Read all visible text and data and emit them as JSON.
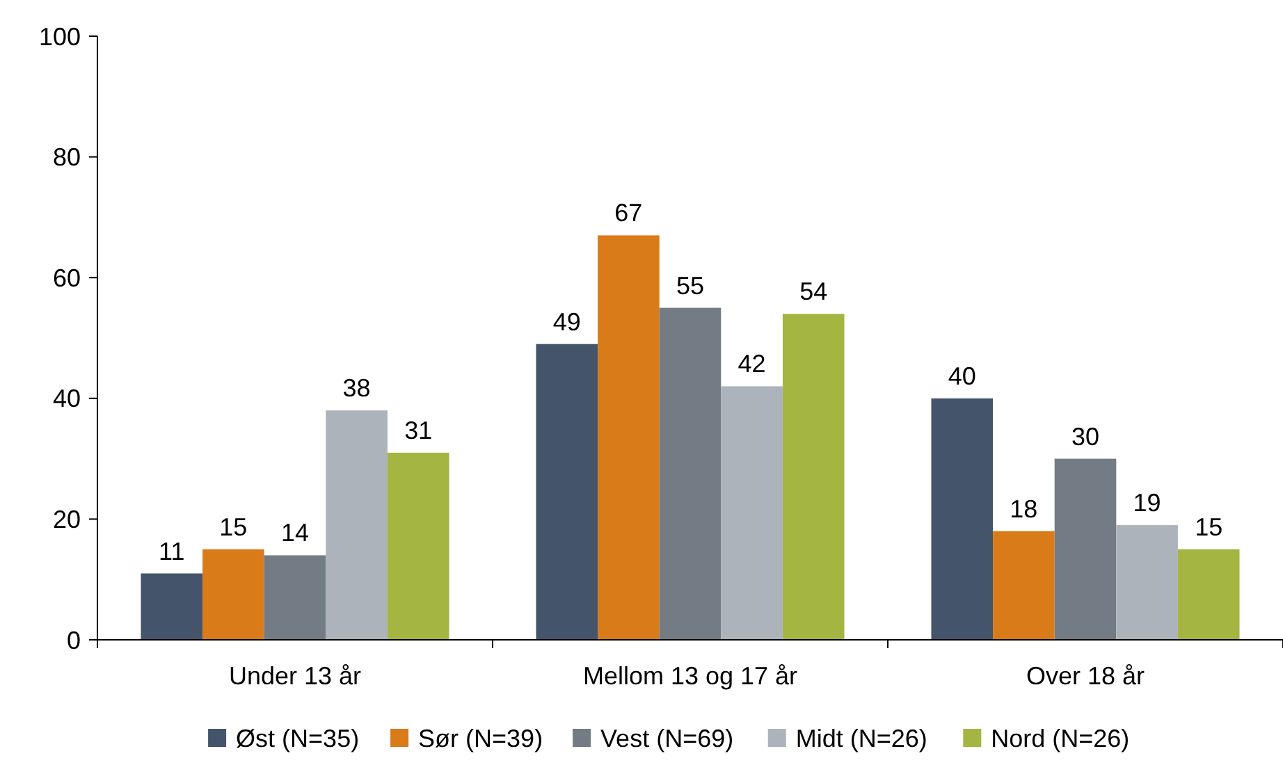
{
  "chart_data": {
    "type": "bar",
    "categories": [
      "Under 13 år",
      "Mellom 13 og 17 år",
      "Over 18 år"
    ],
    "series": [
      {
        "name": "Øst (N=35)",
        "color": "#44546a",
        "values": [
          11,
          49,
          40
        ]
      },
      {
        "name": "Sør (N=39)",
        "color": "#d97b18",
        "values": [
          15,
          67,
          18
        ]
      },
      {
        "name": "Vest (N=69)",
        "color": "#737b84",
        "values": [
          14,
          55,
          30
        ]
      },
      {
        "name": "Midt (N=26)",
        "color": "#adb3ba",
        "values": [
          38,
          42,
          19
        ]
      },
      {
        "name": "Nord (N=26)",
        "color": "#a5b542",
        "values": [
          31,
          54,
          15
        ]
      }
    ],
    "ylim": [
      0,
      100
    ],
    "yticks": [
      0,
      20,
      40,
      60,
      80,
      100
    ],
    "data_labels": true,
    "legend": "bottom",
    "grid": false
  }
}
